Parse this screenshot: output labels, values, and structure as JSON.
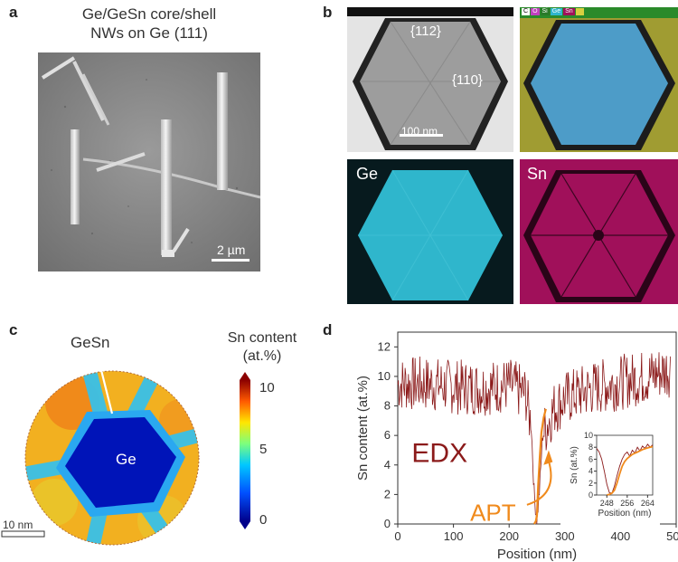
{
  "panels": {
    "a": {
      "label": "a",
      "title_line1": "Ge/GeSn core/shell",
      "title_line2": "NWs on Ge (111)",
      "scale": "2 µm"
    },
    "b": {
      "label": "b",
      "facet_top": "{112}",
      "facet_side": "{110}",
      "scale": "100 nm",
      "legend": [
        "C",
        "O",
        "Si",
        "Ge",
        "Sn"
      ],
      "map_ge": "Ge",
      "map_sn": "Sn"
    },
    "c": {
      "label": "c",
      "gesn_label": "GeSn",
      "ge_label": "Ge",
      "scale": "10 nm",
      "colorbar_title_line1": "Sn content",
      "colorbar_title_line2": "(at.%)",
      "colorbar_ticks": [
        "10",
        "5",
        "0"
      ]
    },
    "d": {
      "label": "d",
      "edx_label": "EDX",
      "apt_label": "APT"
    }
  },
  "colors": {
    "edx": "#8b1a1a",
    "apt": "#f08a1c",
    "ge_map": "#2fb6cc",
    "sn_map": "#a0105a"
  },
  "chart_data": [
    {
      "type": "line",
      "xlabel": "Position (nm)",
      "ylabel": "Sn content (at.%)",
      "xlim": [
        0,
        500
      ],
      "ylim": [
        0,
        13
      ],
      "xticks": [
        0,
        100,
        200,
        300,
        400,
        500
      ],
      "yticks": [
        0,
        2,
        4,
        6,
        8,
        10,
        12
      ],
      "series": [
        {
          "name": "EDX",
          "x": [
            0,
            50,
            100,
            150,
            200,
            230,
            240,
            245,
            250,
            255,
            260,
            280,
            300,
            350,
            400,
            450,
            490
          ],
          "y": [
            9.5,
            9.5,
            9.3,
            9.2,
            9.4,
            8.8,
            6.5,
            2.0,
            0.2,
            2.5,
            6.0,
            7.8,
            8.5,
            9.2,
            9.6,
            10.0,
            10.5
          ]
        },
        {
          "name": "APT",
          "x": [
            245,
            248,
            250,
            252,
            255,
            258,
            262,
            266
          ],
          "y": [
            0.0,
            0.2,
            0.6,
            2.5,
            4.5,
            6.2,
            7.2,
            7.8
          ]
        }
      ]
    },
    {
      "type": "line",
      "xlabel": "Position (nm)",
      "ylabel": "Sn (at.%)",
      "xlim": [
        244,
        266
      ],
      "ylim": [
        0,
        10
      ],
      "xticks": [
        248,
        256,
        264
      ],
      "yticks": [
        0,
        2,
        4,
        6,
        8,
        10
      ],
      "series": [
        {
          "name": "EDX",
          "x": [
            244,
            245,
            246,
            247,
            248,
            249,
            250,
            251,
            252,
            253,
            254,
            255,
            256,
            257,
            258,
            259,
            260,
            261,
            262,
            263,
            264,
            265,
            266
          ],
          "y": [
            7.8,
            7.2,
            6.0,
            4.0,
            1.8,
            0.4,
            0.3,
            1.5,
            3.2,
            4.8,
            6.0,
            6.8,
            7.2,
            6.5,
            7.5,
            7.0,
            8.0,
            7.4,
            8.2,
            7.8,
            8.5,
            8.0,
            8.4
          ]
        },
        {
          "name": "APT",
          "x": [
            248,
            249,
            250,
            251,
            252,
            253,
            254,
            255,
            256,
            258,
            260,
            262,
            264,
            266
          ],
          "y": [
            0.0,
            0.1,
            0.3,
            0.8,
            2.0,
            3.5,
            4.8,
            5.6,
            6.1,
            6.8,
            7.2,
            7.6,
            7.9,
            8.1
          ]
        }
      ]
    }
  ]
}
